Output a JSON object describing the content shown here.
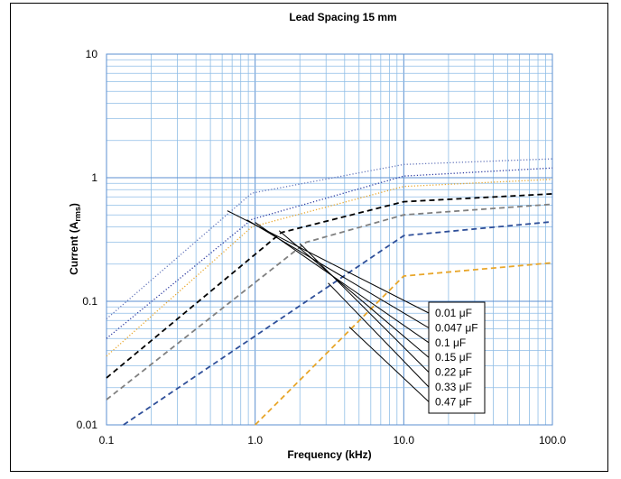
{
  "chart_data": {
    "type": "line",
    "title": "Lead Spacing 15 mm",
    "xlabel": "Frequency (kHz)",
    "ylabel_main": "Current (A",
    "ylabel_sub": "rms",
    "ylabel_close": ")",
    "x_scale": "log",
    "y_scale": "log",
    "xlim": [
      0.1,
      100
    ],
    "ylim": [
      0.01,
      10
    ],
    "x_ticks": [
      {
        "value": 0.1,
        "label": "0.1"
      },
      {
        "value": 1,
        "label": "1.0"
      },
      {
        "value": 10,
        "label": "10.0"
      },
      {
        "value": 100,
        "label": "100.0"
      }
    ],
    "y_ticks": [
      {
        "value": 10,
        "label": "10"
      },
      {
        "value": 1,
        "label": "1"
      },
      {
        "value": 0.1,
        "label": "0.1"
      },
      {
        "value": 0.01,
        "label": "0.01"
      }
    ],
    "grid": true,
    "legend_placement": "center-right",
    "series": [
      {
        "name": "0.01 μF",
        "style": "dotted",
        "color": "#6677bb",
        "x": [
          0.1,
          0.95,
          10,
          100
        ],
        "y": [
          0.072,
          0.75,
          1.28,
          1.42
        ],
        "leader_x": 0.65
      },
      {
        "name": "0.047 μF",
        "style": "dotted",
        "color": "#2c3aa0",
        "x": [
          0.1,
          0.95,
          10,
          100
        ],
        "y": [
          0.05,
          0.46,
          1.03,
          1.2
        ],
        "leader_x": 0.88
      },
      {
        "name": "0.1  μF",
        "style": "dotted",
        "color": "#e8a62a",
        "x": [
          0.1,
          0.95,
          10,
          100
        ],
        "y": [
          0.036,
          0.4,
          0.85,
          0.97
        ],
        "leader_x": 1.0
      },
      {
        "name": "0.15  μF",
        "style": "dashed",
        "color": "#000000",
        "x": [
          0.1,
          1.5,
          10,
          100
        ],
        "y": [
          0.024,
          0.36,
          0.64,
          0.74
        ],
        "leader_x": 1.45
      },
      {
        "name": "0.22  μF",
        "style": "dashed",
        "color": "#808080",
        "x": [
          0.1,
          2.2,
          10,
          100
        ],
        "y": [
          0.016,
          0.3,
          0.5,
          0.61
        ],
        "leader_x": 2.0
      },
      {
        "name": "0.33  μF",
        "style": "dashed",
        "color": "#2f4f99",
        "x": [
          0.13,
          10,
          100
        ],
        "y": [
          0.01,
          0.34,
          0.44
        ],
        "leader_x": 3.1
      },
      {
        "name": "0.47 μF",
        "style": "dashed",
        "color": "#e8a62a",
        "x": [
          1.0,
          10,
          100
        ],
        "y": [
          0.01,
          0.16,
          0.205
        ],
        "leader_x": 4.3
      }
    ]
  }
}
